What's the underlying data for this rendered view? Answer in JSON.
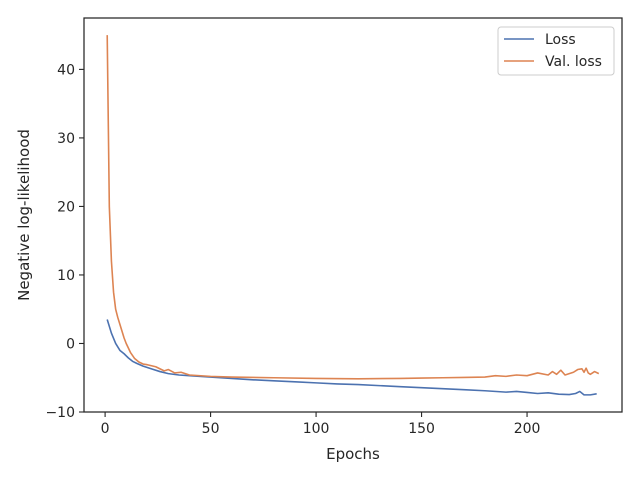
{
  "chart_data": {
    "type": "line",
    "xlabel": "Epochs",
    "ylabel": "Negative log-likelihood",
    "xlim": [
      -10,
      245
    ],
    "ylim": [
      -10,
      47.5
    ],
    "x_ticks": [
      0,
      50,
      100,
      150,
      200
    ],
    "y_ticks": [
      -10,
      0,
      10,
      20,
      30,
      40
    ],
    "y_tick_labels": [
      "−10",
      "0",
      "10",
      "20",
      "30",
      "40"
    ],
    "grid": false,
    "legend": "top-right",
    "series": [
      {
        "name": "Loss",
        "color": "#4c72b0",
        "x": [
          1,
          3,
          5,
          7,
          9,
          11,
          13,
          15,
          18,
          22,
          26,
          30,
          35,
          40,
          50,
          60,
          70,
          80,
          90,
          100,
          110,
          120,
          130,
          140,
          150,
          160,
          170,
          180,
          190,
          195,
          200,
          205,
          210,
          215,
          220,
          223,
          225,
          227,
          230,
          233
        ],
        "y": [
          3.5,
          1.5,
          0.0,
          -1.0,
          -1.5,
          -2.1,
          -2.6,
          -2.9,
          -3.3,
          -3.7,
          -4.1,
          -4.4,
          -4.6,
          -4.7,
          -4.9,
          -5.1,
          -5.3,
          -5.45,
          -5.6,
          -5.75,
          -5.9,
          -6.0,
          -6.15,
          -6.3,
          -6.45,
          -6.6,
          -6.75,
          -6.9,
          -7.1,
          -7.0,
          -7.15,
          -7.3,
          -7.2,
          -7.4,
          -7.45,
          -7.3,
          -7.0,
          -7.5,
          -7.5,
          -7.35
        ]
      },
      {
        "name": "Val. loss",
        "color": "#dd8452",
        "x": [
          1,
          2,
          3,
          4,
          5,
          6,
          7,
          8,
          9,
          10,
          12,
          14,
          16,
          18,
          20,
          24,
          28,
          30,
          33,
          36,
          40,
          50,
          60,
          80,
          100,
          120,
          140,
          150,
          160,
          170,
          180,
          185,
          190,
          195,
          200,
          205,
          210,
          212,
          214,
          216,
          218,
          220,
          222,
          224,
          226,
          227,
          228,
          229,
          230,
          232,
          234
        ],
        "y": [
          45.0,
          20.0,
          12.0,
          7.5,
          5.0,
          3.8,
          2.8,
          1.8,
          0.8,
          0.0,
          -1.3,
          -2.2,
          -2.7,
          -3.0,
          -3.1,
          -3.4,
          -4.0,
          -3.8,
          -4.3,
          -4.2,
          -4.6,
          -4.8,
          -4.9,
          -5.0,
          -5.1,
          -5.15,
          -5.1,
          -5.05,
          -5.0,
          -4.95,
          -4.9,
          -4.7,
          -4.8,
          -4.6,
          -4.7,
          -4.3,
          -4.6,
          -4.1,
          -4.5,
          -3.9,
          -4.6,
          -4.4,
          -4.2,
          -3.8,
          -3.7,
          -4.2,
          -3.6,
          -4.3,
          -4.5,
          -4.1,
          -4.4
        ]
      }
    ]
  }
}
